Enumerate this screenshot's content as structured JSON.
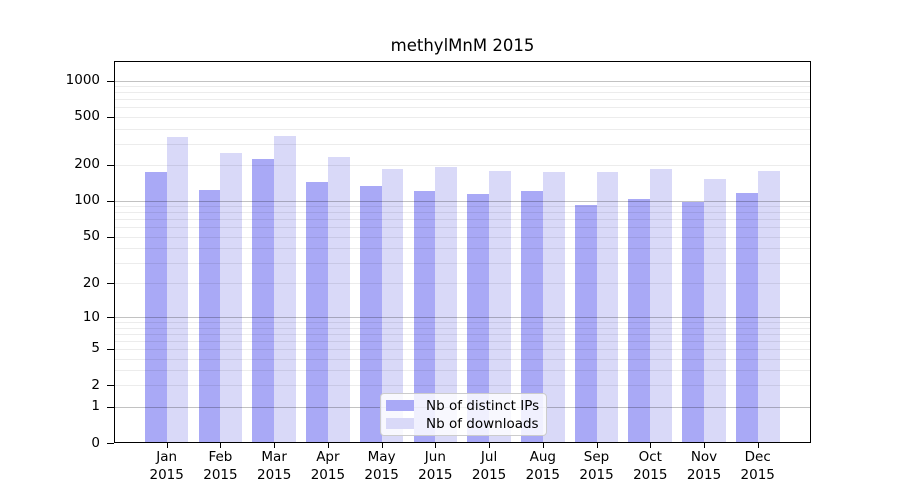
{
  "chart_data": {
    "type": "bar",
    "title": "methylMnM 2015",
    "categories": [
      {
        "month": "Jan",
        "year": "2015"
      },
      {
        "month": "Feb",
        "year": "2015"
      },
      {
        "month": "Mar",
        "year": "2015"
      },
      {
        "month": "Apr",
        "year": "2015"
      },
      {
        "month": "May",
        "year": "2015"
      },
      {
        "month": "Jun",
        "year": "2015"
      },
      {
        "month": "Jul",
        "year": "2015"
      },
      {
        "month": "Aug",
        "year": "2015"
      },
      {
        "month": "Sep",
        "year": "2015"
      },
      {
        "month": "Oct",
        "year": "2015"
      },
      {
        "month": "Nov",
        "year": "2015"
      },
      {
        "month": "Dec",
        "year": "2015"
      }
    ],
    "series": [
      {
        "name": "Nb of distinct IPs",
        "color": "#a9a9f6",
        "values": [
          175,
          124,
          224,
          145,
          132,
          120,
          115,
          121,
          92,
          103,
          98,
          116
        ]
      },
      {
        "name": "Nb of downloads",
        "color": "#d9d9f8",
        "values": [
          338,
          250,
          348,
          234,
          186,
          190,
          177,
          173,
          174,
          184,
          151,
          179
        ]
      }
    ],
    "y_ticks": [
      0,
      1,
      2,
      5,
      10,
      20,
      50,
      100,
      200,
      500,
      1000
    ],
    "y_scale": "log1p",
    "ylim": [
      0,
      1455
    ],
    "xlabel": "",
    "ylabel": "",
    "grid": {
      "enabled": true,
      "minor_color": "#ececec",
      "major_color": "#c4c4c4",
      "major_values": [
        1,
        10,
        100,
        1000
      ]
    },
    "legend": {
      "position": "lower center",
      "border_color": "#cccccc",
      "background": "#ffffff"
    },
    "frame_color": "#000000",
    "background_color": "#ffffff"
  }
}
